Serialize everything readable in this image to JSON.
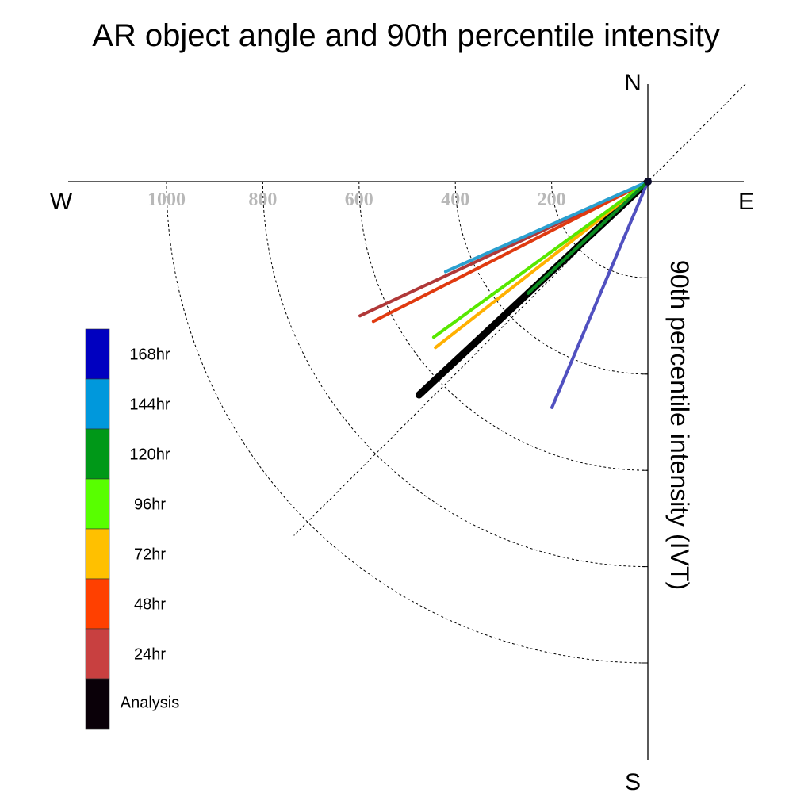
{
  "chart_data": {
    "type": "polar",
    "title": "AR object angle and 90th percentile intensity",
    "axis_label": "90th percentile intensity (IVT)",
    "compass": {
      "north": "N",
      "south": "S",
      "east": "E",
      "west": "W"
    },
    "rings": [
      200,
      400,
      600,
      800,
      1000
    ],
    "ring_labels": [
      "200",
      "400",
      "600",
      "800",
      "1000"
    ],
    "series": [
      {
        "name": "168hr",
        "color": "#0000c0",
        "line_color": "#5050c0",
        "angle_deg": 203,
        "intensity": 510
      },
      {
        "name": "144hr",
        "color": "#0098dc",
        "line_color": "#2aa0d0",
        "angle_deg": 246,
        "intensity": 460
      },
      {
        "name": "120hr",
        "color": "#009818",
        "line_color": "#0a8a20",
        "angle_deg": 227,
        "intensity": 340
      },
      {
        "name": "96hr",
        "color": "#58ff00",
        "line_color": "#58e800",
        "angle_deg": 234,
        "intensity": 550
      },
      {
        "name": "72hr",
        "color": "#ffc000",
        "line_color": "#ffb000",
        "angle_deg": 232,
        "intensity": 560
      },
      {
        "name": "48hr",
        "color": "#ff4000",
        "line_color": "#e03a10",
        "angle_deg": 243,
        "intensity": 640
      },
      {
        "name": "24hr",
        "color": "#c84040",
        "line_color": "#b03838",
        "angle_deg": 245,
        "intensity": 660
      },
      {
        "name": "Analysis",
        "color": "#0a0008",
        "line_color": "#000000",
        "angle_deg": 227,
        "intensity": 650
      }
    ],
    "legend_placement": "left",
    "grid": true
  }
}
